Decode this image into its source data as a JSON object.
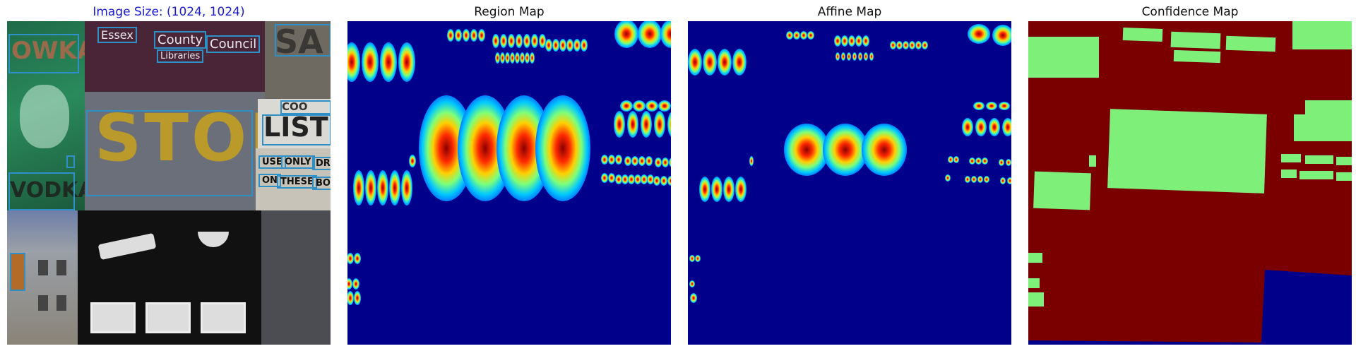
{
  "panels": [
    {
      "title": "Image Size: (1024, 1024)",
      "color": "#1a1ad6"
    },
    {
      "title": "Region Map"
    },
    {
      "title": "Affine Map"
    },
    {
      "title": "Confidence Map"
    }
  ],
  "image_text": {
    "owka": "OWKA",
    "vodka": "VODKA",
    "essex": "Essex",
    "county": "County",
    "council": "Council",
    "libraries": "Libraries",
    "stop": "STOP",
    "sa": "SA",
    "coo": "COO",
    "listi": "LISTI",
    "use": "USE",
    "only": "ONLY",
    "dri": "DRI",
    "on": "ON",
    "these": "THESE",
    "bo": "BO"
  },
  "colors": {
    "heat_background": "#00008a",
    "confidence_high": "#7ef07a",
    "confidence_low": "#7a0000",
    "box_outline": "#2f8fc7"
  }
}
